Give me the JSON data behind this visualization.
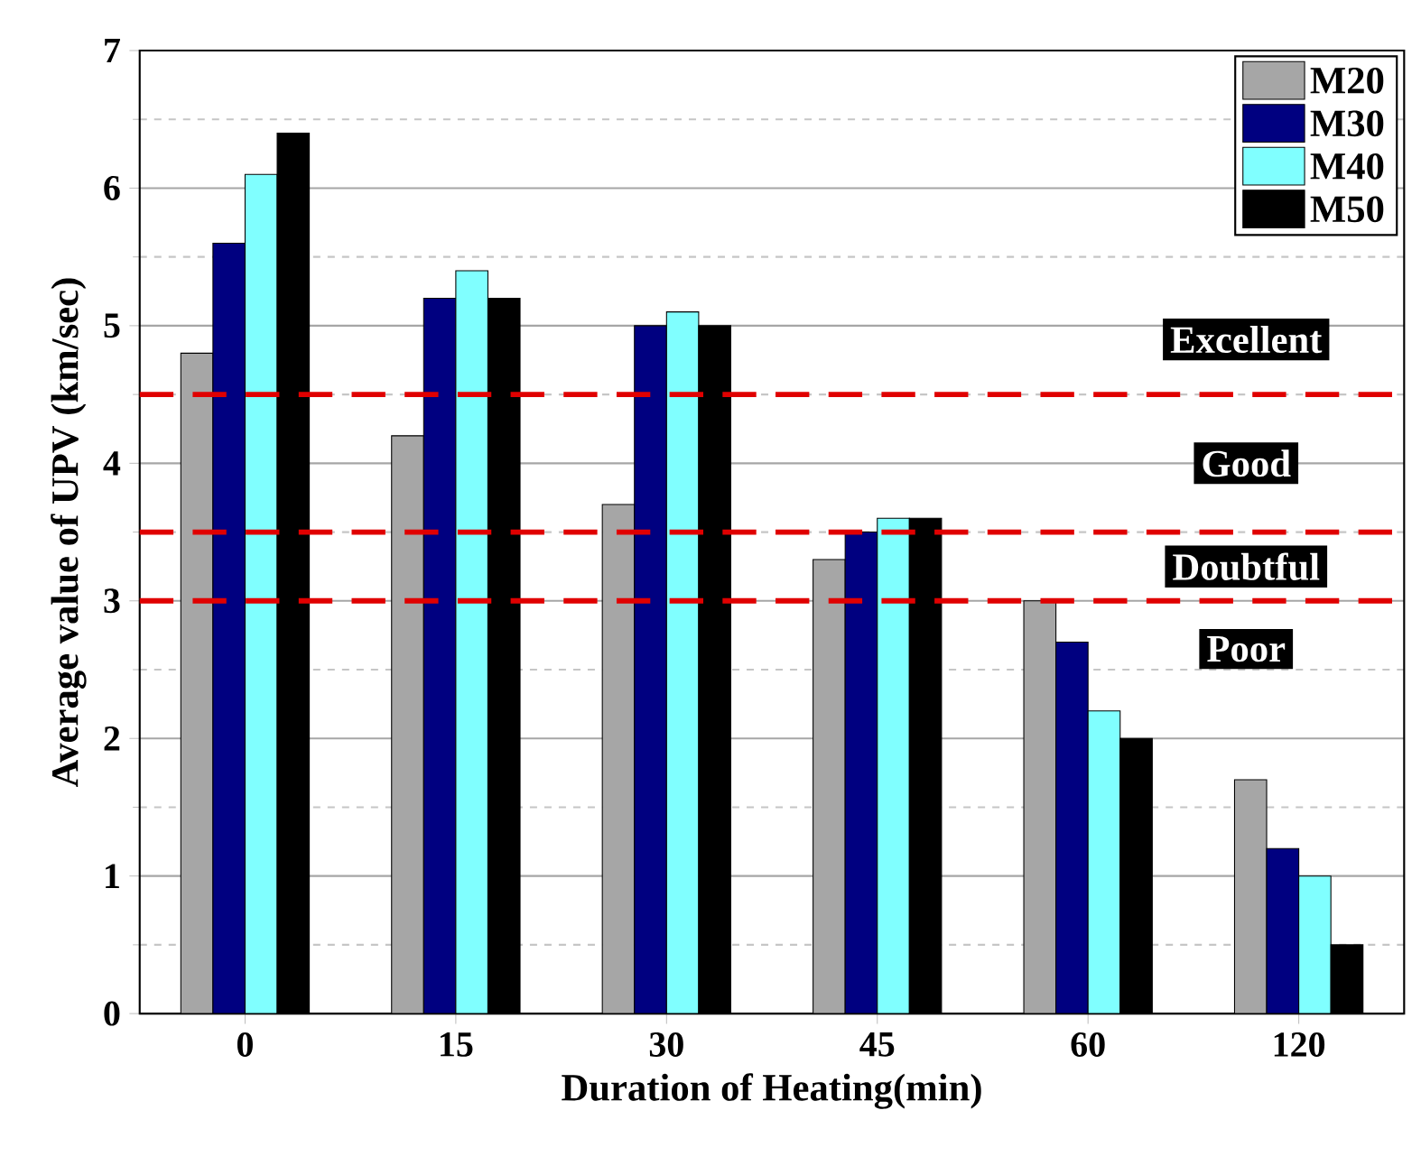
{
  "chart_data": {
    "type": "bar",
    "xlabel": "Duration of Heating(min)",
    "ylabel": "Average value of UPV (km/sec)",
    "categories": [
      "0",
      "15",
      "30",
      "45",
      "60",
      "120"
    ],
    "series": [
      {
        "name": "M20",
        "color": "#a6a6a6",
        "values": [
          4.8,
          4.2,
          3.7,
          3.3,
          3.0,
          1.7
        ]
      },
      {
        "name": "M30",
        "color": "#000080",
        "values": [
          5.6,
          5.2,
          5.0,
          3.5,
          2.7,
          1.2
        ]
      },
      {
        "name": "M40",
        "color": "#80ffff",
        "values": [
          6.1,
          5.4,
          5.1,
          3.6,
          2.2,
          1.0
        ]
      },
      {
        "name": "M50",
        "color": "#000000",
        "values": [
          6.4,
          5.2,
          5.0,
          3.6,
          2.0,
          0.5
        ]
      }
    ],
    "ylim": [
      0,
      7
    ],
    "yticks": [
      0,
      1,
      2,
      3,
      4,
      5,
      6,
      7
    ],
    "grid": "y",
    "legend": "top right",
    "ref_lines": [
      {
        "axis": "y",
        "value": 4.5,
        "color": "#e00000",
        "line_style": "dashed"
      },
      {
        "axis": "y",
        "value": 3.5,
        "color": "#e00000",
        "line_style": "dashed"
      },
      {
        "axis": "y",
        "value": 3.0,
        "color": "#e00000",
        "line_style": "dashed"
      }
    ],
    "annotations": [
      "Excellent",
      "Good",
      "Doubtful",
      "Poor"
    ]
  }
}
